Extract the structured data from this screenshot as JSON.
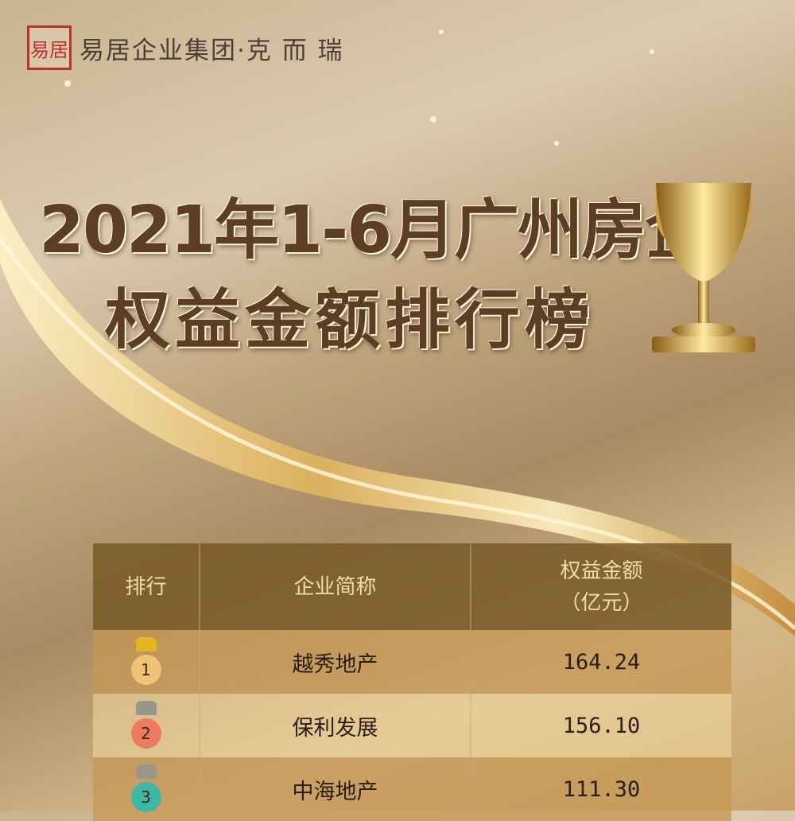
{
  "brand": {
    "seal_text": "易居",
    "name": "易居企业集团·克 而 瑞"
  },
  "title": {
    "line1": "2021年1-6月广州房企",
    "line2": "权益金额排行榜"
  },
  "icons": {
    "trophy": "trophy-icon",
    "medal": "crown-medal-icon"
  },
  "colors": {
    "gold_medal": "#f2c277",
    "silver_red_medal": "#ec7a5e",
    "teal_medal": "#3fb7a5",
    "header_bg": "#7a5a2a"
  },
  "table": {
    "headers": [
      "排行",
      "企业简称",
      "权益金额\n（亿元）"
    ],
    "header_amount_line1": "权益金额",
    "header_amount_line2": "（亿元）",
    "rows": [
      {
        "rank": "1",
        "company": "越秀地产",
        "amount": "164.24"
      },
      {
        "rank": "2",
        "company": "保利发展",
        "amount": "156.10"
      },
      {
        "rank": "3",
        "company": "中海地产",
        "amount": "111.30"
      }
    ]
  }
}
